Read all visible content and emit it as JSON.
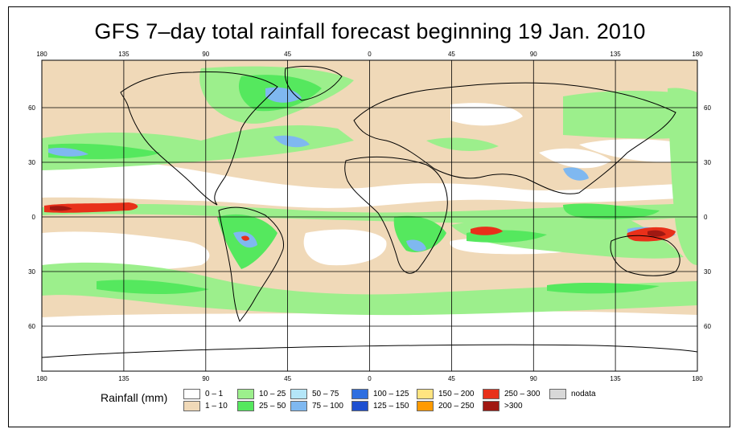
{
  "title": "GFS 7–day total rainfall forecast beginning 19 Jan. 2010",
  "longitude_ticks": [
    "180",
    "135",
    "90",
    "45",
    "0",
    "45",
    "90",
    "135",
    "180"
  ],
  "latitude_ticks": [
    "60",
    "30",
    "0",
    "30",
    "60"
  ],
  "legend": {
    "title": "Rainfall (mm)",
    "items": [
      {
        "label": "0 – 1",
        "color": "#ffffff"
      },
      {
        "label": "1 – 10",
        "color": "#f0d9b8"
      },
      {
        "label": "10 – 25",
        "color": "#9cef8c"
      },
      {
        "label": "25 – 50",
        "color": "#55e85e"
      },
      {
        "label": "50 – 75",
        "color": "#b4e6f8"
      },
      {
        "label": "75 – 100",
        "color": "#7fb8f0"
      },
      {
        "label": "100 – 125",
        "color": "#2f6fe0"
      },
      {
        "label": "125 – 150",
        "color": "#1e4fd0"
      },
      {
        "label": "150 – 200",
        "color": "#ffe480"
      },
      {
        "label": "200 – 250",
        "color": "#ff9a00"
      },
      {
        "label": "250 – 300",
        "color": "#e8301a"
      },
      {
        "label": ">300",
        "color": "#a01812"
      },
      {
        "label": "nodata",
        "color": "#d8d8d8"
      }
    ]
  },
  "colors": {
    "ocean_dry": "#ffffff",
    "light_rain": "#f0d9b8",
    "moderate": "#9cef8c",
    "heavy": "#55e85e",
    "very_heavy": "#7fb8f0",
    "extreme": "#e8301a",
    "coast": "#000000"
  }
}
